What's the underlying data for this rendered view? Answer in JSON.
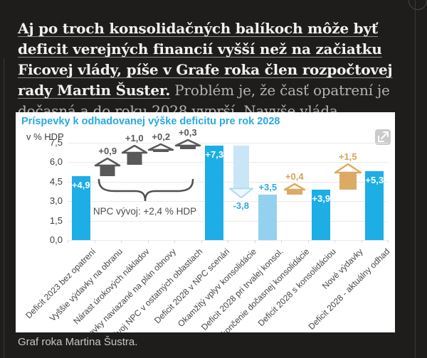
{
  "page": {
    "background": "#1f1d1c",
    "headline_bold": "Aj po troch konsolidačných balíkoch môže byť deficit verejných financií vyšší než na začiatku Ficovej vlády, píše v Grafe roka člen rozpočtovej rady Martin Šuster.",
    "headline_rest": " Problém je, že časť opatrení je dočasná a do roku 2028 vyprší. Navyše vláda každoročne prijíma nové výdavky.",
    "caption": "Graf roka Martina Šustra."
  },
  "chart_data": {
    "type": "bar",
    "title": "Príspevky k odhadovanej výške deficitu pre rok 2028",
    "ylabel": "v % HDP",
    "ylim": [
      0,
      7.5
    ],
    "grid": true,
    "legend": "none",
    "yticks": [
      {
        "label": "7,5",
        "v": 7.5
      },
      {
        "label": "6,0",
        "v": 6.0
      },
      {
        "label": "4,5",
        "v": 4.5
      },
      {
        "label": "3,0",
        "v": 3.0
      },
      {
        "label": "1,5",
        "v": 1.5
      },
      {
        "label": "0,0",
        "v": 0.0
      }
    ],
    "annotation": "NPC vývoj: +2,4 % HDP",
    "annotation_span_columns": [
      1,
      4
    ],
    "colors": {
      "bar_blue": "#1caee5",
      "bar_light": "#93d1ee",
      "arrow_light": "#c9e6f6",
      "arrow_stroke": "#addcf2",
      "arrow_head_fill": "#eef7fc",
      "tan": "#dcaa65",
      "tan_label": "#d7a257",
      "dark_gray": "#595959",
      "label_blue": "#2da9e0",
      "title_blue": "#2aa9e0"
    },
    "columns": [
      {
        "label": "Deficit 2023 bez opatrení",
        "type": "bar",
        "base": 0,
        "value": 4.9,
        "display": "+4,9"
      },
      {
        "label": "Vyššie výdavky na obranu",
        "type": "house_dark",
        "base": 4.9,
        "value": 0.9,
        "display": "+0,9"
      },
      {
        "label": "Nárast úrokových nákladov",
        "type": "house_dark",
        "base": 5.8,
        "value": 1.0,
        "display": "+1,0"
      },
      {
        "label": "Výdavky naviazané na plán obnovy",
        "type": "roof_dark",
        "base": 6.8,
        "value": 0.2,
        "display": "+0,2"
      },
      {
        "label": "Vývoj NPC v ostatných oblastiach",
        "type": "roof_dark",
        "base": 7.0,
        "value": 0.3,
        "display": "+0,3"
      },
      {
        "label": "Deficit 2028 v NPC scenári",
        "type": "bar",
        "base": 0,
        "value": 7.3,
        "display": "+7,3"
      },
      {
        "label": "Okamžitý vplyv konsolidácie",
        "type": "arrow_down",
        "base": 3.5,
        "value": -3.8,
        "display": "-3,8"
      },
      {
        "label": "Deficit 2028 pri trvalej konsol.",
        "type": "bar_light",
        "base": 0,
        "value": 3.5,
        "display": "+3,5"
      },
      {
        "label": "Ukončenie dočasnej konsolidácie",
        "type": "roof_tan",
        "base": 3.5,
        "value": 0.4,
        "display": "+0,4"
      },
      {
        "label": "Deficit 2028 s konsolidáciou",
        "type": "bar",
        "base": 0,
        "value": 3.9,
        "display": "+3,9"
      },
      {
        "label": "Nové výdavky",
        "type": "house_tan",
        "base": 3.9,
        "value": 1.5,
        "display": "+1,5"
      },
      {
        "label": "Deficit 2028 - aktuálny odhad",
        "type": "bar",
        "base": 0,
        "value": 5.3,
        "display": "+5,3"
      }
    ]
  }
}
